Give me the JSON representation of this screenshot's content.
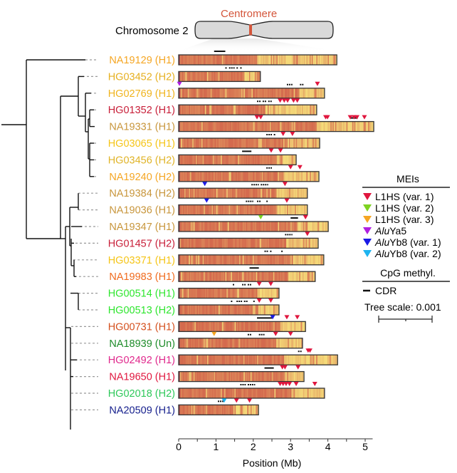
{
  "header": {
    "chromosome_label": "Chromosome 2",
    "centromere_label": "Centromere",
    "centromere_color": "#d4553a"
  },
  "axis": {
    "label": "Position (Mb)",
    "ticks": [
      "0",
      "1",
      "2",
      "3",
      "4",
      "5"
    ],
    "min": 0,
    "max": 5.2
  },
  "legend": {
    "mei_title": "MEIs",
    "mei_items": [
      {
        "name": "L1HS",
        "suffix": " (var. 1)",
        "italic_prefix": "",
        "color": "#e0163e"
      },
      {
        "name": "L1HS",
        "suffix": " (var. 2)",
        "italic_prefix": "",
        "color": "#7ed321"
      },
      {
        "name": "L1HS",
        "suffix": " (var. 3)",
        "italic_prefix": "",
        "color": "#f5a623"
      },
      {
        "name": "Ya5",
        "suffix": "",
        "italic_prefix": "Alu",
        "color": "#b01fe0"
      },
      {
        "name": "Yb8",
        "suffix": " (var. 1)",
        "italic_prefix": "Alu",
        "color": "#1a1ae6"
      },
      {
        "name": "Yb8",
        "suffix": " (var. 2)",
        "italic_prefix": "Alu",
        "color": "#1eb4f0"
      }
    ],
    "cpg_title": "CpG methyl.",
    "cdr_label": "CDR",
    "tree_scale_label": "Tree scale: 0.001"
  },
  "colors": {
    "methyl_high": "#d46a4e",
    "methyl_low": "#f5dc7a",
    "bar_border": "#333333"
  },
  "samples": [
    {
      "label": "NA19129 (H1)",
      "color": "#f5a623",
      "length": 4.24,
      "transition": 2.1,
      "cdr": [
        [
          0.95,
          1.25
        ]
      ],
      "meis": []
    },
    {
      "label": "HG03452 (H2)",
      "color": "#e6b020",
      "length": 2.19,
      "transition": 1.75,
      "cdr": [
        [
          1.25,
          1.3
        ],
        [
          1.35,
          1.5
        ],
        [
          1.55,
          1.6
        ],
        [
          1.65,
          1.7
        ]
      ],
      "meis": []
    },
    {
      "label": "HG02769 (H1)",
      "color": "#f0b41e",
      "length": 3.91,
      "transition": 3.2,
      "cdr": [
        [
          2.9,
          3.05
        ],
        [
          3.25,
          3.35
        ]
      ],
      "meis": [
        {
          "pos": 0.02,
          "type": 3
        },
        {
          "pos": 3.72,
          "type": 0
        }
      ]
    },
    {
      "label": "HG01352 (H1)",
      "color": "#c8203a",
      "length": 3.7,
      "transition": 2.3,
      "cdr": [
        [
          2.1,
          2.2
        ],
        [
          2.25,
          2.35
        ],
        [
          2.4,
          2.5
        ]
      ],
      "meis": [
        {
          "pos": 2.72,
          "type": 0
        },
        {
          "pos": 2.83,
          "type": 0
        },
        {
          "pos": 2.92,
          "type": 0
        },
        {
          "pos": 3.08,
          "type": 0
        },
        {
          "pos": 3.18,
          "type": 0
        }
      ]
    },
    {
      "label": "NA19331 (H1)",
      "color": "#c8963c",
      "length": 5.23,
      "transition": 3.7,
      "cdr": [
        [
          4.6,
          4.8
        ]
      ],
      "meis": [
        {
          "pos": 2.1,
          "type": 0
        },
        {
          "pos": 2.2,
          "type": 0
        },
        {
          "pos": 3.94,
          "type": 0
        },
        {
          "pos": 3.99,
          "type": 0
        },
        {
          "pos": 4.6,
          "type": 0
        },
        {
          "pos": 4.7,
          "type": 0
        },
        {
          "pos": 4.78,
          "type": 0
        },
        {
          "pos": 4.98,
          "type": 0
        }
      ]
    },
    {
      "label": "HG03065 (H1)",
      "color": "#f5c518",
      "length": 3.78,
      "transition": 2.9,
      "cdr": [
        [
          2.35,
          2.5
        ],
        [
          2.55,
          2.6
        ]
      ],
      "meis": [
        {
          "pos": 2.8,
          "type": 0
        },
        {
          "pos": 3.05,
          "type": 0
        }
      ]
    },
    {
      "label": "HG03456 (H2)",
      "color": "#e0b428",
      "length": 3.15,
      "transition": 2.5,
      "cdr": [
        [
          1.7,
          1.95
        ]
      ],
      "meis": [
        {
          "pos": 2.48,
          "type": 0
        },
        {
          "pos": 2.73,
          "type": 0
        }
      ]
    },
    {
      "label": "NA19240 (H2)",
      "color": "#f5a623",
      "length": 3.76,
      "transition": 2.8,
      "cdr": [
        [
          2.35,
          2.5
        ]
      ],
      "meis": [
        {
          "pos": 3.0,
          "type": 0
        },
        {
          "pos": 3.25,
          "type": 0
        }
      ]
    },
    {
      "label": "NA19384 (H2)",
      "color": "#c8963c",
      "length": 3.45,
      "transition": 2.6,
      "cdr": [
        [
          1.95,
          2.15
        ],
        [
          2.2,
          2.4
        ]
      ],
      "meis": [
        {
          "pos": 0.7,
          "type": 4
        },
        {
          "pos": 2.85,
          "type": 0
        }
      ]
    },
    {
      "label": "NA19036 (H1)",
      "color": "#c8963c",
      "length": 3.45,
      "transition": 2.6,
      "cdr": [
        [
          1.8,
          2.0
        ],
        [
          2.1,
          2.2
        ],
        [
          2.35,
          2.4
        ]
      ],
      "meis": [
        {
          "pos": 0.75,
          "type": 4
        },
        {
          "pos": 2.9,
          "type": 0
        }
      ]
    },
    {
      "label": "NA19347 (H1)",
      "color": "#c8963c",
      "length": 4.01,
      "transition": 3.2,
      "cdr": [
        [
          3.0,
          3.2
        ]
      ],
      "meis": [
        {
          "pos": 2.2,
          "type": 1
        },
        {
          "pos": 3.4,
          "type": 0
        }
      ]
    },
    {
      "label": "HG01457 (H2)",
      "color": "#c8203a",
      "length": 3.74,
      "transition": 2.9,
      "cdr": [
        [
          2.85,
          3.05
        ]
      ],
      "meis": [
        {
          "pos": 3.45,
          "type": 0
        }
      ]
    },
    {
      "label": "HG03371 (H1)",
      "color": "#f5c518",
      "length": 3.89,
      "transition": 3.05,
      "cdr": [
        [
          2.3,
          2.4
        ],
        [
          2.45,
          2.5
        ],
        [
          2.75,
          2.8
        ]
      ],
      "meis": []
    },
    {
      "label": "NA19983 (H1)",
      "color": "#f06b1e",
      "length": 3.66,
      "transition": 2.9,
      "cdr": [
        [
          1.9,
          2.15
        ]
      ],
      "meis": []
    },
    {
      "label": "HG00514 (H1)",
      "color": "#2ee62e",
      "length": 2.69,
      "transition": 2.1,
      "cdr": [
        [
          1.45,
          1.5
        ],
        [
          1.7,
          1.8
        ],
        [
          1.85,
          1.95
        ]
      ],
      "meis": [
        {
          "pos": 2.16,
          "type": 0
        },
        {
          "pos": 2.47,
          "type": 0
        }
      ]
    },
    {
      "label": "HG00513 (H2)",
      "color": "#2ee62e",
      "length": 2.69,
      "transition": 2.1,
      "cdr": [
        [
          1.4,
          1.45
        ],
        [
          1.55,
          1.7
        ],
        [
          1.75,
          1.85
        ],
        [
          2.0,
          2.05
        ]
      ],
      "meis": [
        {
          "pos": 2.16,
          "type": 0
        },
        {
          "pos": 2.47,
          "type": 0
        }
      ]
    },
    {
      "label": "HG00731 (H1)",
      "color": "#d4501e",
      "length": 3.4,
      "transition": 2.7,
      "cdr": [
        [
          2.1,
          2.5
        ]
      ],
      "meis": [
        {
          "pos": 2.52,
          "type": 4
        },
        {
          "pos": 2.9,
          "type": 0
        },
        {
          "pos": 3.18,
          "type": 0
        }
      ]
    },
    {
      "label": "NA18939 (Un)",
      "color": "#1e8c2a",
      "length": 3.32,
      "transition": 2.6,
      "cdr": [
        [
          1.85,
          1.95
        ],
        [
          2.15,
          2.3
        ]
      ],
      "meis": [
        {
          "pos": 0.95,
          "type": 2
        },
        {
          "pos": 2.6,
          "type": 0
        },
        {
          "pos": 3.0,
          "type": 0
        }
      ]
    },
    {
      "label": "HG02492 (H1)",
      "color": "#e0288c",
      "length": 4.26,
      "transition": 2.8,
      "cdr": [
        [
          3.2,
          3.3
        ]
      ],
      "meis": [
        {
          "pos": 3.47,
          "type": 0
        },
        {
          "pos": 3.52,
          "type": 0
        }
      ]
    },
    {
      "label": "NA19650 (H1)",
      "color": "#e0163e",
      "length": 3.36,
      "transition": 2.8,
      "cdr": [
        [
          2.3,
          2.55
        ]
      ],
      "meis": [
        {
          "pos": 2.78,
          "type": 0
        },
        {
          "pos": 2.85,
          "type": 0
        },
        {
          "pos": 3.2,
          "type": 0
        }
      ]
    },
    {
      "label": "HG02018 (H2)",
      "color": "#2ec85a",
      "length": 3.91,
      "transition": 3.0,
      "cdr": [
        [
          1.65,
          1.8
        ],
        [
          1.85,
          2.05
        ]
      ],
      "meis": [
        {
          "pos": 2.72,
          "type": 0
        },
        {
          "pos": 2.8,
          "type": 0
        },
        {
          "pos": 2.88,
          "type": 0
        },
        {
          "pos": 2.97,
          "type": 0
        },
        {
          "pos": 3.15,
          "type": 0
        },
        {
          "pos": 3.65,
          "type": 0
        }
      ]
    },
    {
      "label": "NA20509 (H1)",
      "color": "#141e8c",
      "length": 2.14,
      "transition": 1.5,
      "cdr": [
        [
          1.05,
          1.2
        ]
      ],
      "meis": [
        {
          "pos": 1.22,
          "type": 5
        },
        {
          "pos": 1.55,
          "type": 0
        },
        {
          "pos": 1.9,
          "type": 0
        }
      ]
    }
  ]
}
